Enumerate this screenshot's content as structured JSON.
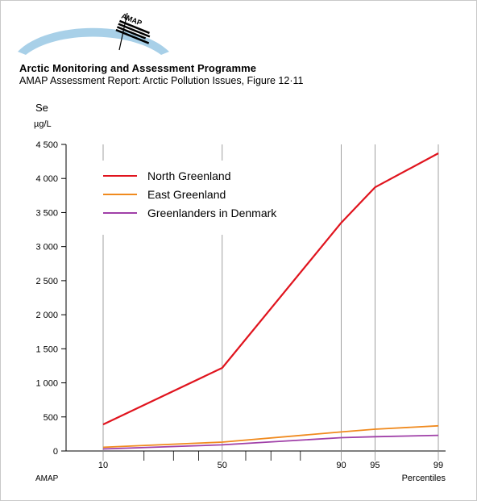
{
  "header": {
    "logo_text": "AMAP",
    "title": "Arctic Monitoring and Assessment Programme",
    "subtitle": "AMAP Assessment Report: Arctic Pollution Issues, Figure 12·11"
  },
  "footer": {
    "source": "AMAP"
  },
  "colors": {
    "north_greenland": "#e0141e",
    "east_greenland": "#f08a1e",
    "greenlanders_denmark": "#a040a8",
    "logo_arc": "#a8d0e8"
  },
  "chart_data": {
    "type": "line",
    "ylabel": "Se",
    "yunit": "µg/L",
    "xlabel": "Percentiles",
    "ylim": [
      0,
      4500
    ],
    "yticks": [
      0,
      500,
      1000,
      1500,
      2000,
      2500,
      3000,
      3500,
      4000,
      4500
    ],
    "ytick_labels": [
      "0",
      "500",
      "1 000",
      "1 500",
      "2 000",
      "2 500",
      "3 000",
      "3 500",
      "4 000",
      "4 500"
    ],
    "xticks": [
      10,
      50,
      90,
      95,
      99
    ],
    "xtick_labels": [
      "10",
      "50",
      "90",
      "95",
      "99"
    ],
    "xscale": "normal-probability",
    "legend_position": "top-left",
    "grid": false,
    "series": [
      {
        "name": "North Greenland",
        "color": "#e0141e",
        "x": [
          10,
          50,
          90,
          95,
          99
        ],
        "values": [
          390,
          1220,
          3350,
          3870,
          4370
        ]
      },
      {
        "name": "East Greenland",
        "color": "#f08a1e",
        "x": [
          10,
          50,
          90,
          95,
          99
        ],
        "values": [
          55,
          130,
          280,
          320,
          370
        ]
      },
      {
        "name": "Greenlanders in Denmark",
        "color": "#a040a8",
        "x": [
          10,
          50,
          90,
          95,
          99
        ],
        "values": [
          30,
          90,
          195,
          210,
          230
        ]
      }
    ]
  }
}
